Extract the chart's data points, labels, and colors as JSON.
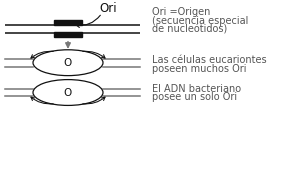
{
  "bg_color": "#ffffff",
  "line_color": "#777777",
  "black_color": "#111111",
  "arrow_color": "#777777",
  "text_color": "#555555",
  "label_ori": "Ori",
  "text1_line1": "Ori =Origen",
  "text1_line2": "(secuencia especial",
  "text1_line3": "de nucleótidos)",
  "text2_line1": "Las células eucariontes",
  "text2_line2": "poseen muchos Ori",
  "text3_line1": "El ADN bacteriano",
  "text3_line2": "posee un solo Ori",
  "font_size_label": 8.5,
  "font_size_text": 7.0,
  "font_size_o": 7.5
}
